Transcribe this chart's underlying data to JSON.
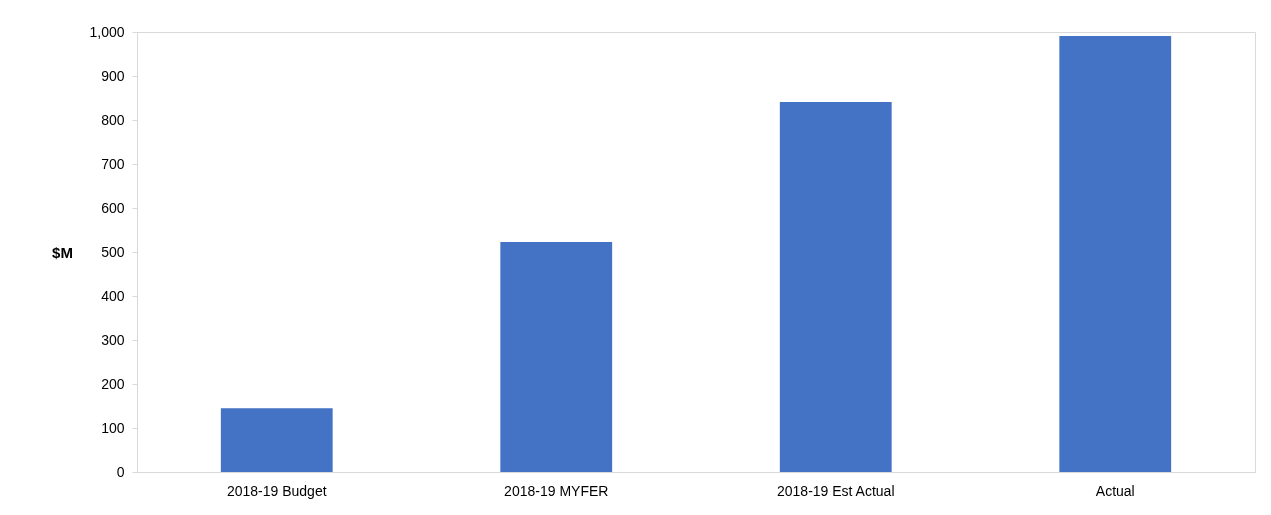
{
  "chart_data": {
    "type": "bar",
    "ylabel": "$M",
    "categories": [
      "2018-19 Budget",
      "2018-19 MYFER",
      "2018-19 Est Actual",
      "Actual"
    ],
    "values": [
      145,
      523,
      841,
      991
    ],
    "color": "#4472c4",
    "ylim": [
      0,
      1000
    ],
    "yticks": [
      0,
      100,
      200,
      300,
      400,
      500,
      600,
      700,
      800,
      900,
      {
        "value": 1000,
        "label": "1,000"
      }
    ],
    "grid": false
  }
}
